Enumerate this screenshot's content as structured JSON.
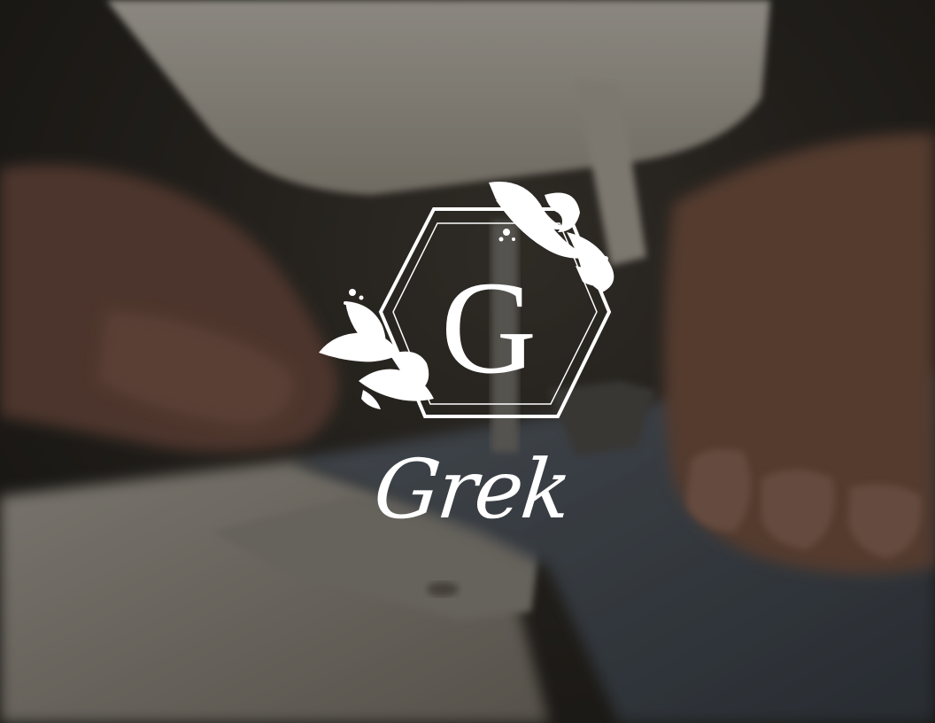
{
  "image": {
    "description_kind": "brand-logo-over-photo",
    "colors": {
      "logo": "#ffffff",
      "overlay": "#0a0908",
      "fabric": "#5b6570",
      "skin": "#8a5f4c",
      "machine": "#d9d4c9"
    }
  },
  "logo": {
    "monogram": "G",
    "wordmark": "Grek",
    "emblem_shape": "double-hexagon",
    "ornament": "floral-swirl-icon"
  }
}
